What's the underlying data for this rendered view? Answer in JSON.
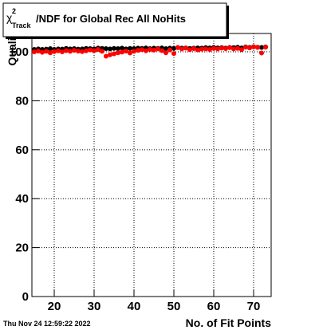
{
  "chart_data": {
    "type": "scatter",
    "title": {
      "symbol": "χ",
      "sup": "2",
      "sub": "Track",
      "text": "/NDF for Global Rec All NoHits"
    },
    "x_label": "No. of Fit Points",
    "y_label": "Quality",
    "timestamp": "Thu Nov 24 12:59:22 2022",
    "x": [
      15,
      16,
      17,
      18,
      19,
      20,
      21,
      22,
      23,
      24,
      25,
      26,
      27,
      28,
      29,
      30,
      31,
      32,
      33,
      34,
      35,
      36,
      37,
      38,
      39,
      40,
      41,
      42,
      43,
      44,
      45,
      46,
      47,
      48,
      49,
      50,
      51,
      52,
      53,
      54,
      55,
      56,
      57,
      58,
      59,
      60,
      61,
      62,
      63,
      64,
      65,
      66,
      67,
      68,
      69,
      70,
      71,
      72,
      73
    ],
    "series": [
      {
        "color": "#000000",
        "values": [
          101,
          101.2,
          101,
          101.1,
          101.3,
          101,
          101.2,
          101.1,
          101.4,
          101.2,
          101.3,
          101.1,
          101.2,
          101.4,
          101.3,
          101.2,
          101.5,
          101.4,
          101.3,
          101.2,
          101.4,
          101.3,
          101.5,
          101.2,
          101.4,
          101.3,
          101.5,
          101.4,
          101.6,
          101.3,
          101.5,
          101.4,
          101.6,
          101.3,
          101.5,
          101.4,
          101.7,
          101.5,
          101.6,
          101.4,
          101.5,
          101.6,
          101.5,
          101.7,
          101.6,
          101.8,
          101.6,
          101.7,
          101.5,
          101.8,
          101.7,
          101.9,
          101.6,
          102,
          101.8,
          102.1,
          101.9,
          101.8,
          102
        ]
      },
      {
        "color": "#ff0000",
        "values": [
          100,
          100.3,
          99.8,
          100.2,
          99.6,
          100.1,
          100.4,
          100,
          100.5,
          100.2,
          100.6,
          100.3,
          100.1,
          100.4,
          100.8,
          100.5,
          101,
          100.2,
          98.2,
          98.8,
          99.2,
          99.6,
          99.9,
          100.3,
          99.5,
          100.2,
          100.6,
          100.9,
          100.4,
          101,
          100.7,
          101.2,
          100.5,
          99.6,
          100.8,
          99.3,
          101.8,
          101.2,
          101.5,
          100.9,
          101.3,
          100.8,
          101.1,
          101.2,
          101,
          101.4,
          101.2,
          101.5,
          101.3,
          101.7,
          101.2,
          101.4,
          100.9,
          101.9,
          101.6,
          102,
          101.8,
          99.5,
          101.9
        ]
      }
    ],
    "xlim": [
      14.4,
      74.4
    ],
    "ylim": [
      0,
      107.5
    ],
    "xticks": [
      20,
      30,
      40,
      50,
      60,
      70
    ],
    "yticks": [
      0,
      20,
      40,
      60,
      80,
      100
    ],
    "grid": true
  }
}
